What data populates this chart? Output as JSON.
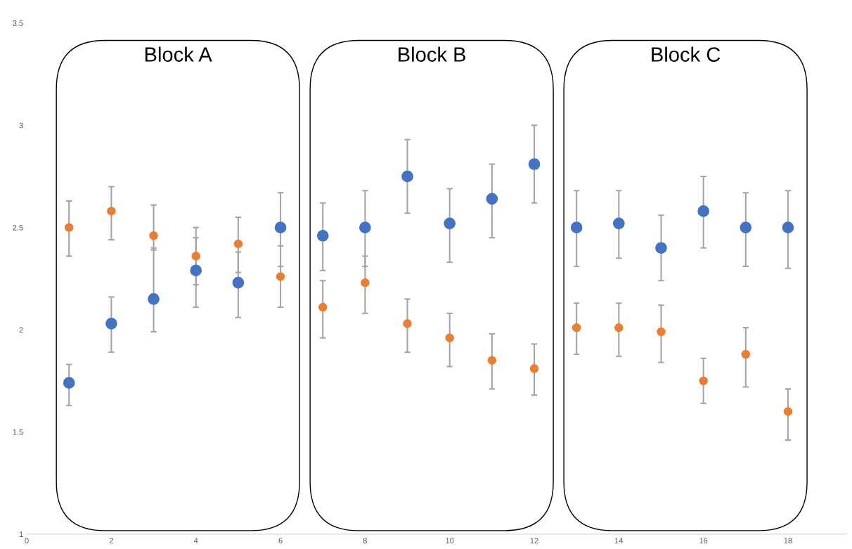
{
  "chart_data": {
    "type": "scatter",
    "x": [
      1,
      2,
      3,
      4,
      5,
      6,
      7,
      8,
      9,
      10,
      11,
      12,
      13,
      14,
      15,
      16,
      17,
      18
    ],
    "xlim": [
      0,
      19.4
    ],
    "xticks": [
      0,
      2,
      4,
      6,
      8,
      10,
      12,
      14,
      16,
      18
    ],
    "ylim": [
      1,
      3.5
    ],
    "yticks": [
      1,
      1.5,
      2,
      2.5,
      3,
      3.5
    ],
    "grid": false,
    "marker": "circle",
    "series": [
      {
        "color": "#4472c4",
        "values": [
          1.74,
          2.03,
          2.15,
          2.29,
          2.23,
          2.5,
          2.46,
          2.5,
          2.75,
          2.52,
          2.64,
          2.81,
          2.5,
          2.52,
          2.4,
          2.58,
          2.5,
          2.5
        ],
        "errors": [
          [
            1.63,
            1.83
          ],
          [
            1.89,
            2.16
          ],
          [
            1.99,
            2.4
          ],
          [
            2.11,
            2.45
          ],
          [
            2.06,
            2.38
          ],
          [
            2.31,
            2.67
          ],
          [
            2.29,
            2.62
          ],
          [
            2.31,
            2.68
          ],
          [
            2.57,
            2.93
          ],
          [
            2.33,
            2.69
          ],
          [
            2.45,
            2.81
          ],
          [
            2.62,
            3.0
          ],
          [
            2.31,
            2.68
          ],
          [
            2.35,
            2.68
          ],
          [
            2.24,
            2.56
          ],
          [
            2.4,
            2.75
          ],
          [
            2.31,
            2.67
          ],
          [
            2.3,
            2.68
          ]
        ]
      },
      {
        "color": "#ed7d31",
        "values": [
          2.5,
          2.58,
          2.46,
          2.36,
          2.42,
          2.26,
          2.11,
          2.23,
          2.03,
          1.96,
          1.85,
          1.81,
          2.01,
          2.01,
          1.99,
          1.75,
          1.88,
          1.6
        ],
        "errors": [
          [
            2.36,
            2.63
          ],
          [
            2.44,
            2.7
          ],
          [
            2.39,
            2.61
          ],
          [
            2.22,
            2.5
          ],
          [
            2.28,
            2.55
          ],
          [
            2.11,
            2.41
          ],
          [
            1.96,
            2.24
          ],
          [
            2.08,
            2.36
          ],
          [
            1.89,
            2.15
          ],
          [
            1.82,
            2.08
          ],
          [
            1.71,
            1.98
          ],
          [
            1.68,
            1.93
          ],
          [
            1.88,
            2.13
          ],
          [
            1.87,
            2.13
          ],
          [
            1.84,
            2.12
          ],
          [
            1.64,
            1.86
          ],
          [
            1.72,
            2.01
          ],
          [
            1.46,
            1.71
          ]
        ]
      }
    ],
    "annotations": [
      "Block A",
      "Block B",
      "Block C"
    ]
  }
}
